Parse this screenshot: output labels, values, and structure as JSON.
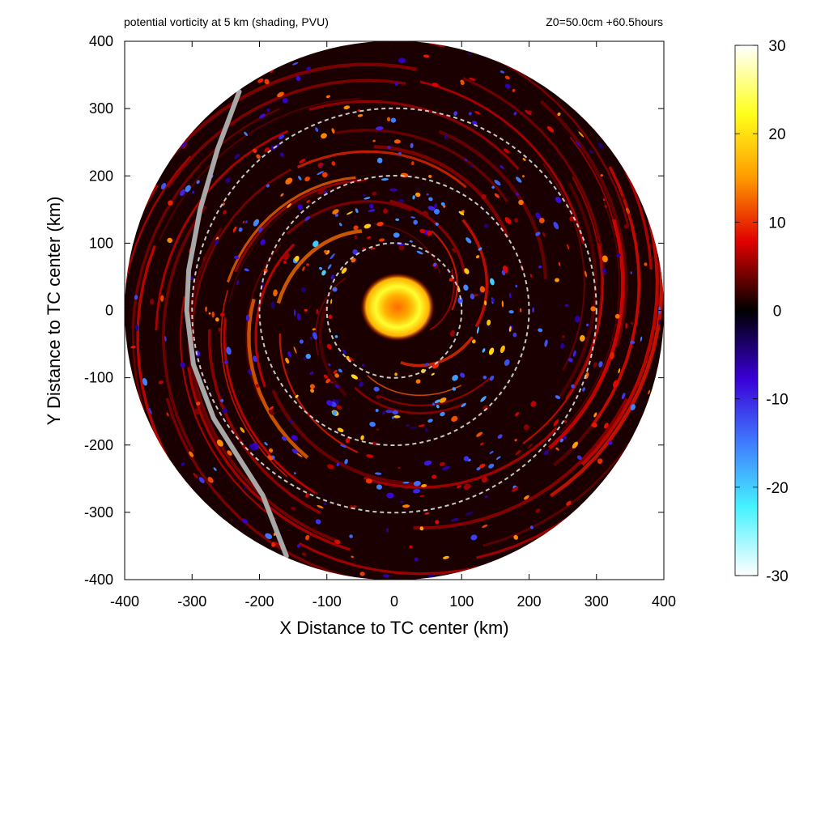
{
  "chart_data": {
    "type": "heatmap",
    "title": "potential vorticity at 5 km (shading, PVU)",
    "subtitle": "Z0=50.0cm  +60.5hours",
    "xlabel": "X Distance to TC center (km)",
    "ylabel": "Y Distance to TC center (km)",
    "xlim": [
      -400,
      400
    ],
    "ylim": [
      -400,
      400
    ],
    "x_ticks": [
      "-400",
      "-300",
      "-200",
      "-100",
      "0",
      "100",
      "200",
      "300",
      "400"
    ],
    "y_ticks": [
      "400",
      "300",
      "200",
      "100",
      "0",
      "-100",
      "-200",
      "-300",
      "-400"
    ],
    "colorbar": {
      "range": [
        -30,
        30
      ],
      "ticks": [
        "30",
        "20",
        "10",
        "0",
        "-10",
        "-20",
        "-30"
      ],
      "stops": [
        {
          "value": 30,
          "color": "#ffffff"
        },
        {
          "value": 22,
          "color": "#ffff1a"
        },
        {
          "value": 15,
          "color": "#ff9a00"
        },
        {
          "value": 8,
          "color": "#e00000"
        },
        {
          "value": 0,
          "color": "#000000"
        },
        {
          "value": -8,
          "color": "#3a00d8"
        },
        {
          "value": -15,
          "color": "#3f7cff"
        },
        {
          "value": -22,
          "color": "#45f2ff"
        },
        {
          "value": 30,
          "color": "#ffffff",
          "note": ""
        }
      ]
    },
    "domain_radius_km": 400,
    "reference_circles_km": [
      100,
      200,
      300
    ],
    "core": {
      "center_km": [
        5,
        5
      ],
      "radius_km": 55,
      "peak_pvu": 30
    },
    "inner_rainband_pvu": 10,
    "outer_rainband_pvu": 12,
    "grey_track_points_km": [
      [
        -230,
        325
      ],
      [
        -262,
        240
      ],
      [
        -288,
        150
      ],
      [
        -305,
        60
      ],
      [
        -308,
        0
      ],
      [
        -298,
        -80
      ],
      [
        -268,
        -160
      ],
      [
        -230,
        -220
      ],
      [
        -195,
        -275
      ],
      [
        -160,
        -365
      ]
    ]
  }
}
